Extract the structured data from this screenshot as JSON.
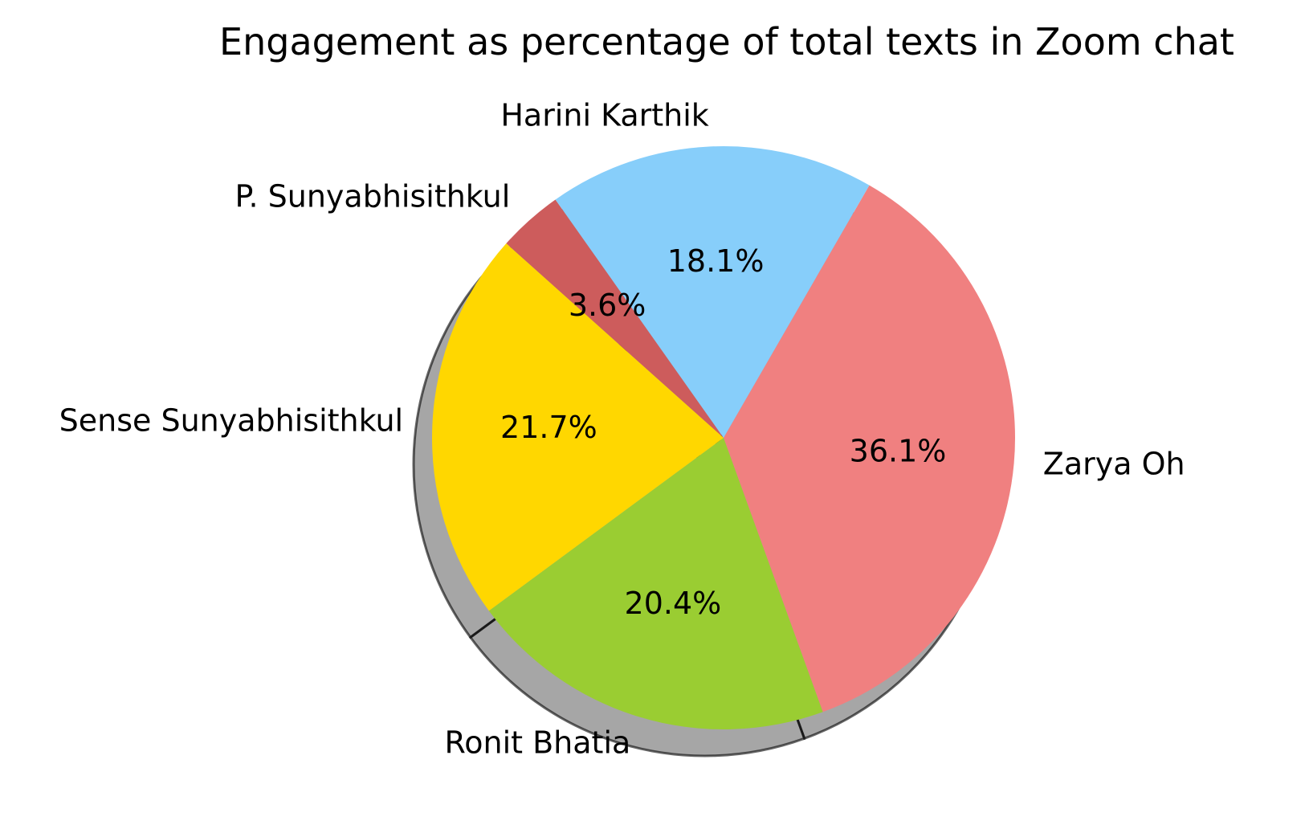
{
  "chart_data": {
    "type": "pie",
    "title": "Engagement as percentage of total texts in Zoom chat",
    "slices": [
      {
        "label": "Zarya Oh",
        "value": 36.1,
        "color": "#F08080"
      },
      {
        "label": "Ronit Bhatia",
        "value": 20.4,
        "color": "#9ACD32"
      },
      {
        "label": "Sense Sunyabhisithkul",
        "value": 21.7,
        "color": "#FFD700"
      },
      {
        "label": "P. Sunyabhisithkul",
        "value": 3.6,
        "color": "#CD5C5C"
      },
      {
        "label": "Harini Karthik",
        "value": 18.1,
        "color": "#87CEFA"
      }
    ],
    "pct_format": "1 decimal with %",
    "shadow": true,
    "start_angle_deg": 60,
    "direction": "clockwise"
  }
}
